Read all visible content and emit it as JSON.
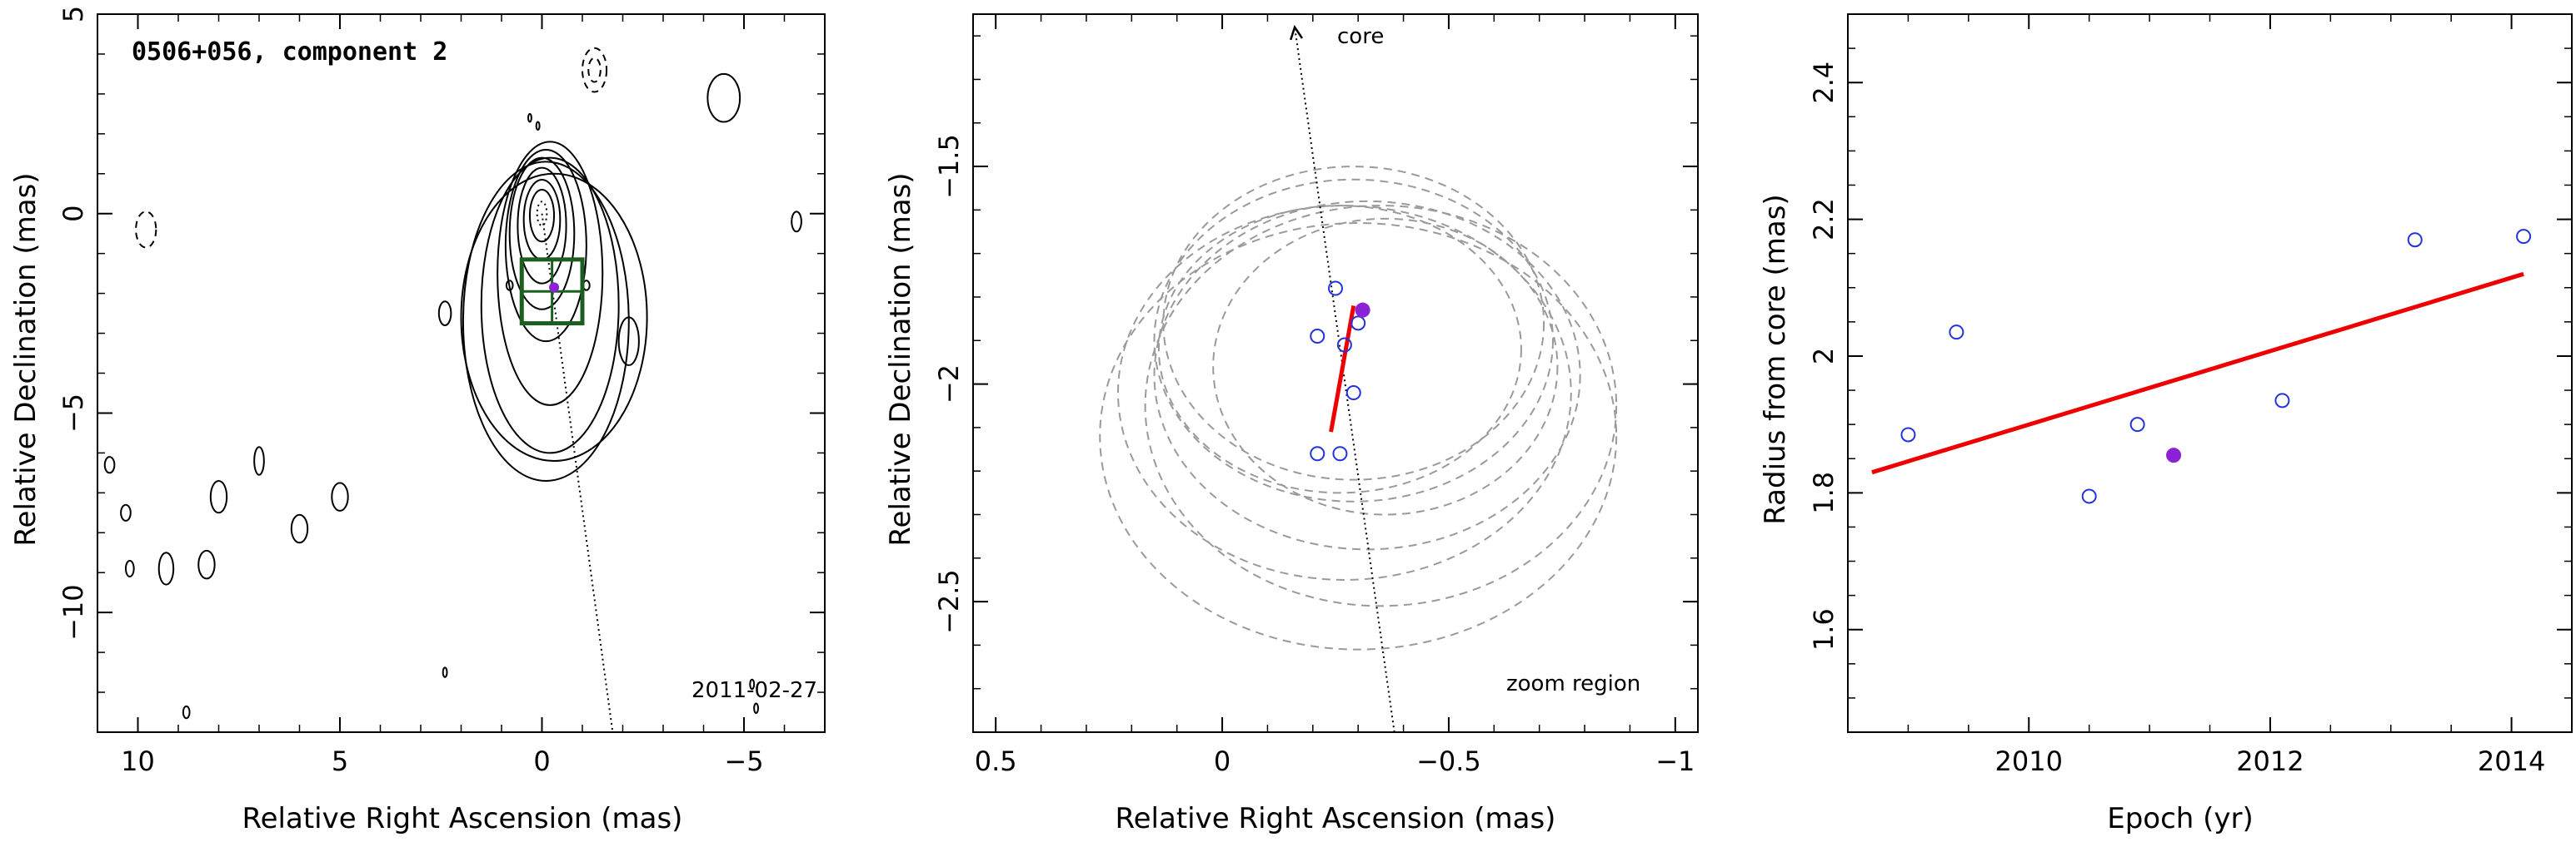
{
  "chart_data": [
    {
      "type": "contour",
      "title": "0506+056, component 2",
      "date": "2011-02-27",
      "xlabel": "Relative Right Ascension (mas)",
      "ylabel": "Relative Declination (mas)",
      "xlim": [
        11,
        -7
      ],
      "ylim": [
        -13,
        5
      ],
      "x_ticks": [
        10,
        5,
        0,
        -5
      ],
      "y_ticks": [
        5,
        0,
        -5,
        -10
      ],
      "core_position": [
        0,
        0
      ],
      "component_position": [
        -0.3,
        -1.85
      ],
      "zoom_box": {
        "x_range": [
          0.5,
          -1.0
        ],
        "y_range": [
          -2.75,
          -1.15
        ]
      },
      "jet_axis_end": [
        -1.75,
        -13
      ],
      "contours": [
        {
          "cx": 0,
          "cy": 0,
          "rx": 0.12,
          "ry": 0.3,
          "style": "dotted"
        },
        {
          "cx": 0,
          "cy": -0.05,
          "rx": 0.3,
          "ry": 0.65
        },
        {
          "cx": 0,
          "cy": -0.15,
          "rx": 0.45,
          "ry": 1.0
        },
        {
          "cx": 0,
          "cy": -0.3,
          "rx": 0.6,
          "ry": 1.45
        },
        {
          "cx": 0,
          "cy": -0.5,
          "rx": 0.8,
          "ry": 1.9
        },
        {
          "cx": -0.1,
          "cy": -0.8,
          "rx": 1.0,
          "ry": 2.4
        },
        {
          "cx": -0.2,
          "cy": -1.5,
          "rx": 1.3,
          "ry": 3.3
        },
        {
          "cx": -0.2,
          "cy": -2.3,
          "rx": 1.7,
          "ry": 3.7
        },
        {
          "cx": -0.1,
          "cy": -2.7,
          "rx": 2.05,
          "ry": 4.0
        },
        {
          "cx": -0.3,
          "cy": -2.6,
          "rx": 2.3,
          "ry": 3.6
        },
        {
          "cx": -2.15,
          "cy": -3.2,
          "rx": 0.25,
          "ry": 0.6
        },
        {
          "cx": 2.4,
          "cy": -2.5,
          "rx": 0.15,
          "ry": 0.3
        },
        {
          "cx": -4.5,
          "cy": 2.9,
          "rx": 0.4,
          "ry": 0.6
        },
        {
          "cx": -6.3,
          "cy": -0.2,
          "rx": 0.12,
          "ry": 0.25
        },
        {
          "cx": 7.0,
          "cy": -6.2,
          "rx": 0.12,
          "ry": 0.35
        },
        {
          "cx": 8.0,
          "cy": -7.1,
          "rx": 0.2,
          "ry": 0.4
        },
        {
          "cx": 5.0,
          "cy": -7.1,
          "rx": 0.2,
          "ry": 0.35
        },
        {
          "cx": 6.0,
          "cy": -7.9,
          "rx": 0.2,
          "ry": 0.35
        },
        {
          "cx": 9.3,
          "cy": -8.9,
          "rx": 0.18,
          "ry": 0.4
        },
        {
          "cx": 8.3,
          "cy": -8.8,
          "rx": 0.2,
          "ry": 0.35
        },
        {
          "cx": 10.7,
          "cy": -6.3,
          "rx": 0.12,
          "ry": 0.2
        },
        {
          "cx": 10.3,
          "cy": -7.5,
          "rx": 0.12,
          "ry": 0.2
        },
        {
          "cx": 10.2,
          "cy": -8.9,
          "rx": 0.1,
          "ry": 0.2
        },
        {
          "cx": -1.1,
          "cy": -1.8,
          "rx": 0.08,
          "ry": 0.12
        },
        {
          "cx": 0.8,
          "cy": -1.8,
          "rx": 0.08,
          "ry": 0.12
        },
        {
          "cx": 2.4,
          "cy": -11.5,
          "rx": 0.05,
          "ry": 0.12
        },
        {
          "cx": 8.8,
          "cy": -12.5,
          "rx": 0.08,
          "ry": 0.15
        },
        {
          "cx": -5.2,
          "cy": -11.8,
          "rx": 0.05,
          "ry": 0.12
        },
        {
          "cx": -5.3,
          "cy": -12.4,
          "rx": 0.05,
          "ry": 0.12
        },
        {
          "cx": 0.1,
          "cy": 2.2,
          "rx": 0.04,
          "ry": 0.1
        },
        {
          "cx": 0.3,
          "cy": 2.4,
          "rx": 0.04,
          "ry": 0.1
        },
        {
          "cx": -1.3,
          "cy": 3.6,
          "rx": 0.3,
          "ry": 0.55,
          "style": "dashed"
        },
        {
          "cx": -1.3,
          "cy": 3.6,
          "rx": 0.15,
          "ry": 0.3,
          "style": "dashed"
        },
        {
          "cx": 9.8,
          "cy": -0.4,
          "rx": 0.25,
          "ry": 0.45,
          "style": "dashed"
        }
      ]
    },
    {
      "type": "scatter",
      "xlabel": "Relative Right Ascension (mas)",
      "ylabel": "Relative Declination (mas)",
      "xlim": [
        0.55,
        -1.05
      ],
      "ylim": [
        -2.8,
        -1.15
      ],
      "x_ticks": [
        0.5,
        0,
        -0.5,
        -1
      ],
      "y_ticks": [
        -1.5,
        -2,
        -2.5
      ],
      "annotations": {
        "core_label": "core",
        "zoom_label": "zoom region"
      },
      "core_arrow": {
        "from": [
          -0.38,
          -2.8
        ],
        "to": [
          -0.16,
          -1.18
        ]
      },
      "points_open": [
        {
          "x": -0.25,
          "y": -1.78
        },
        {
          "x": -0.21,
          "y": -1.89
        },
        {
          "x": -0.27,
          "y": -1.91
        },
        {
          "x": -0.3,
          "y": -1.86
        },
        {
          "x": -0.29,
          "y": -2.02
        },
        {
          "x": -0.21,
          "y": -2.16
        },
        {
          "x": -0.26,
          "y": -2.16
        }
      ],
      "points_filled": [
        {
          "x": -0.31,
          "y": -1.83
        }
      ],
      "fit_line": {
        "from": [
          -0.24,
          -2.11
        ],
        "to": [
          -0.29,
          -1.82
        ]
      },
      "error_ellipses": [
        {
          "cx": -0.26,
          "cy": -1.92,
          "rx": 0.4,
          "ry": 0.33
        },
        {
          "cx": -0.27,
          "cy": -2.02,
          "rx": 0.5,
          "ry": 0.43
        },
        {
          "cx": -0.3,
          "cy": -2.12,
          "rx": 0.57,
          "ry": 0.49
        },
        {
          "cx": -0.29,
          "cy": -1.9,
          "rx": 0.44,
          "ry": 0.37
        },
        {
          "cx": -0.32,
          "cy": -1.98,
          "rx": 0.47,
          "ry": 0.4
        },
        {
          "cx": -0.35,
          "cy": -2.05,
          "rx": 0.52,
          "ry": 0.46
        },
        {
          "cx": -0.36,
          "cy": -1.96,
          "rx": 0.38,
          "ry": 0.34
        },
        {
          "cx": -0.29,
          "cy": -1.86,
          "rx": 0.42,
          "ry": 0.36
        }
      ]
    },
    {
      "type": "scatter",
      "xlabel": "Epoch (yr)",
      "ylabel": "Radius from core (mas)",
      "xlim": [
        2008.5,
        2014.5
      ],
      "ylim": [
        1.45,
        2.5
      ],
      "x_ticks": [
        2010,
        2012,
        2014
      ],
      "y_ticks": [
        1.6,
        1.8,
        2,
        2.2,
        2.4
      ],
      "points_open": [
        {
          "x": 2009.0,
          "y": 1.885
        },
        {
          "x": 2009.4,
          "y": 2.035
        },
        {
          "x": 2010.5,
          "y": 1.795
        },
        {
          "x": 2010.9,
          "y": 1.9
        },
        {
          "x": 2012.1,
          "y": 1.935
        },
        {
          "x": 2013.2,
          "y": 2.17
        },
        {
          "x": 2014.1,
          "y": 2.175
        }
      ],
      "points_filled": [
        {
          "x": 2011.2,
          "y": 1.855
        }
      ],
      "fit_line": {
        "from": [
          2008.7,
          1.83
        ],
        "to": [
          2014.1,
          2.12
        ]
      }
    }
  ],
  "colors": {
    "axes": "#000000",
    "contour": "#000000",
    "zoom_box": "#1b5e20",
    "marker_open": "#2233dd",
    "marker_filled": "#8b22d6",
    "fit_line": "#ee0000",
    "error_ellipse": "#9a9a9a"
  }
}
